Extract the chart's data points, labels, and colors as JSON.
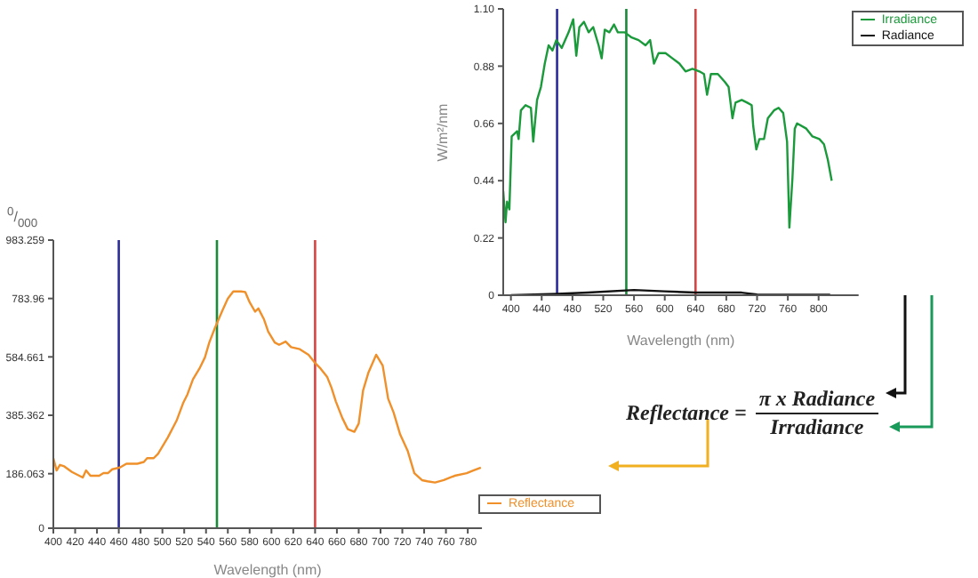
{
  "chart_data": [
    {
      "type": "line",
      "xlabel": "Wavelength (nm)",
      "ylabel": "$^{0}$/$_{000}$",
      "xlim": [
        400,
        793
      ],
      "xticks": [
        400,
        420,
        440,
        460,
        480,
        500,
        520,
        540,
        560,
        580,
        600,
        620,
        640,
        660,
        680,
        700,
        720,
        740,
        760,
        780
      ],
      "ylim": [
        0,
        983.259
      ],
      "yticks": [
        0,
        186.063,
        385.362,
        584.661,
        783.96,
        983.259
      ],
      "grid": false,
      "legend": "bottom right",
      "series": [
        {
          "name": "Reflectance",
          "color": "#f0902a",
          "x": [
            400,
            403,
            406,
            410,
            417,
            427,
            430,
            434,
            442,
            446,
            450,
            454,
            461,
            467,
            477,
            483,
            486,
            492,
            496,
            505,
            513,
            519,
            523,
            528,
            534,
            539,
            543,
            548,
            555,
            560,
            565,
            572,
            576,
            580,
            585,
            588,
            593,
            597,
            603,
            607,
            613,
            618,
            626,
            634,
            640,
            645,
            651,
            655,
            659,
            665,
            670,
            676,
            680,
            684,
            689,
            696,
            702,
            707,
            712,
            718,
            725,
            731,
            738,
            743,
            750,
            758,
            768,
            779,
            785,
            792
          ],
          "values": [
            239,
            197,
            216,
            211,
            192,
            173,
            197,
            179,
            179,
            188,
            188,
            201,
            207,
            220,
            220,
            226,
            239,
            239,
            254,
            310,
            367,
            427,
            457,
            508,
            545,
            583,
            634,
            682,
            743,
            784,
            808,
            808,
            806,
            771,
            739,
            750,
            714,
            671,
            634,
            626,
            637,
            618,
            611,
            592,
            564,
            545,
            517,
            480,
            433,
            376,
            338,
            329,
            357,
            470,
            532,
            592,
            555,
            442,
            395,
            320,
            263,
            188,
            164,
            160,
            156,
            164,
            179,
            188,
            197,
            207
          ]
        }
      ],
      "ref_lines": [
        {
          "axis": "x",
          "value": 460,
          "color": "#2a2a9a"
        },
        {
          "axis": "x",
          "value": 550,
          "color": "#1a8a3a"
        },
        {
          "axis": "x",
          "value": 640,
          "color": "#d84444"
        }
      ]
    },
    {
      "type": "line",
      "xlabel": "Wavelength (nm)",
      "ylabel": "W/m²/nm",
      "xlim": [
        390,
        852
      ],
      "xticks": [
        400,
        440,
        480,
        520,
        560,
        600,
        640,
        680,
        720,
        760,
        800
      ],
      "ylim": [
        0,
        1.1
      ],
      "yticks": [
        0,
        0.22,
        0.44,
        0.66,
        0.88,
        {
          "value": 1.1,
          "label": "1.10"
        }
      ],
      "grid": false,
      "legend": "top right",
      "series": [
        {
          "name": "Irradiance",
          "color": "#1a9a3a",
          "x": [
            390,
            393,
            395,
            398,
            401,
            408,
            410,
            413,
            419,
            426,
            429,
            434,
            439,
            444,
            449,
            454,
            459,
            466,
            475,
            481,
            485,
            489,
            495,
            501,
            507,
            514,
            518,
            522,
            528,
            534,
            539,
            548,
            557,
            566,
            575,
            581,
            586,
            592,
            601,
            610,
            619,
            627,
            636,
            645,
            651,
            655,
            660,
            669,
            678,
            683,
            688,
            692,
            700,
            707,
            713,
            715,
            719,
            723,
            729,
            734,
            742,
            748,
            754,
            759,
            762,
            766,
            769,
            772,
            784,
            792,
            801,
            807,
            812,
            817
          ],
          "values": [
            0.4,
            0.28,
            0.36,
            0.33,
            0.61,
            0.63,
            0.6,
            0.71,
            0.73,
            0.72,
            0.59,
            0.75,
            0.8,
            0.89,
            0.96,
            0.94,
            0.98,
            0.95,
            1.01,
            1.06,
            0.92,
            1.03,
            1.05,
            1.01,
            1.03,
            0.96,
            0.91,
            1.02,
            1.01,
            1.04,
            1.01,
            1.01,
            0.99,
            0.98,
            0.96,
            0.98,
            0.89,
            0.93,
            0.93,
            0.91,
            0.89,
            0.86,
            0.87,
            0.86,
            0.85,
            0.77,
            0.85,
            0.85,
            0.82,
            0.8,
            0.68,
            0.74,
            0.75,
            0.74,
            0.73,
            0.65,
            0.56,
            0.6,
            0.6,
            0.68,
            0.71,
            0.72,
            0.7,
            0.59,
            0.26,
            0.45,
            0.64,
            0.66,
            0.64,
            0.61,
            0.6,
            0.58,
            0.52,
            0.44
          ]
        },
        {
          "name": "Radiance",
          "color": "#111111",
          "x": [
            400,
            460,
            500,
            560,
            600,
            640,
            700,
            720,
            760,
            815
          ],
          "values": [
            0,
            0.005,
            0.01,
            0.02,
            0.015,
            0.01,
            0.01,
            0.003,
            0.002,
            0.002
          ]
        }
      ],
      "ref_lines": [
        {
          "axis": "x",
          "value": 460,
          "color": "#2a2a9a"
        },
        {
          "axis": "x",
          "value": 550,
          "color": "#1a8a3a"
        },
        {
          "axis": "x",
          "value": 640,
          "color": "#d84444"
        }
      ]
    },
    {
      "type": "other",
      "annotations": [
        "Reflectance =",
        "π x Radiance",
        "Irradiance"
      ]
    }
  ]
}
